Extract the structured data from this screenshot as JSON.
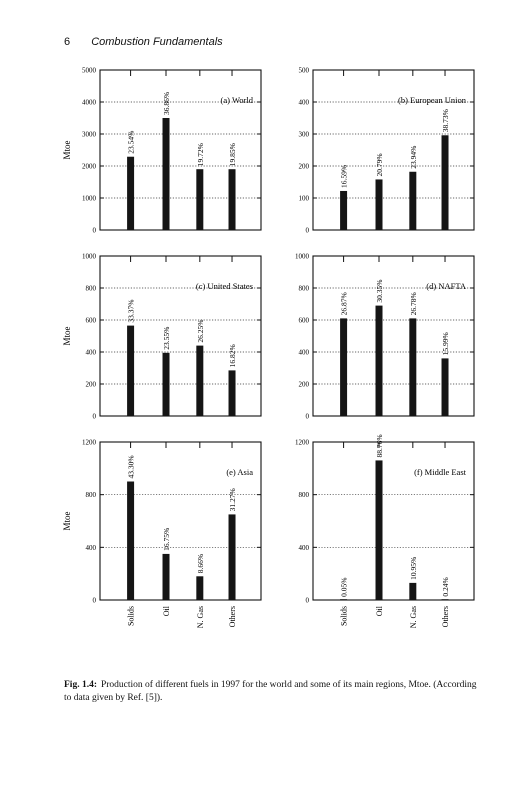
{
  "header": {
    "page_number": "6",
    "running_title": "Combustion Fundamentals"
  },
  "caption": {
    "label": "Fig. 1.4:",
    "text": "Production of different fuels in 1997 for the world and some of its main regions, Mtoe. (According to data given by Ref. [5])."
  },
  "chart_data": [
    {
      "type": "bar",
      "title": "(a) World",
      "ylabel": "Mtoe",
      "ylim": [
        0,
        5000
      ],
      "yticks": [
        0,
        1000,
        2000,
        3000,
        4000,
        5000
      ],
      "categories": [
        "Solids",
        "Oil",
        "N. Gas",
        "Others"
      ],
      "values": [
        2290,
        3500,
        1900,
        1900
      ],
      "labels": [
        "23.54%",
        "36.86%",
        "19.72%",
        "19.85%"
      ],
      "grid": "dotted-horizontal"
    },
    {
      "type": "bar",
      "title": "(b) European Union",
      "ylabel": "",
      "ylim": [
        0,
        500
      ],
      "yticks": [
        0,
        100,
        200,
        300,
        400,
        500
      ],
      "categories": [
        "Solids",
        "Oil",
        "N. Gas",
        "Others"
      ],
      "values": [
        122,
        158,
        182,
        296
      ],
      "labels": [
        "16.59%",
        "20.79%",
        "23.94%",
        "38.73%"
      ],
      "grid": "dotted-horizontal"
    },
    {
      "type": "bar",
      "title": "(c) United States",
      "ylabel": "Mtoe",
      "ylim": [
        0,
        1000
      ],
      "yticks": [
        0,
        200,
        400,
        600,
        800,
        1000
      ],
      "categories": [
        "Solids",
        "Oil",
        "N. Gas",
        "Others"
      ],
      "values": [
        565,
        395,
        440,
        285
      ],
      "labels": [
        "33.37%",
        "23.55%",
        "26.25%",
        "16.82%"
      ],
      "grid": "dotted-horizontal"
    },
    {
      "type": "bar",
      "title": "(d) NAFTA",
      "ylabel": "",
      "ylim": [
        0,
        1000
      ],
      "yticks": [
        0,
        200,
        400,
        600,
        800,
        1000
      ],
      "categories": [
        "Solids",
        "Oil",
        "N. Gas",
        "Others"
      ],
      "values": [
        610,
        690,
        610,
        360
      ],
      "labels": [
        "26.87%",
        "30.35%",
        "26.78%",
        "15.99%"
      ],
      "grid": "dotted-horizontal"
    },
    {
      "type": "bar",
      "title": "(e) Asia",
      "ylabel": "Mtoe",
      "ylim": [
        0,
        1200
      ],
      "yticks": [
        0,
        400,
        800,
        1200
      ],
      "categories": [
        "Solids",
        "Oil",
        "N. Gas",
        "Others"
      ],
      "values": [
        900,
        350,
        180,
        650
      ],
      "labels": [
        "43.30%",
        "16.75%",
        "8.66%",
        "31.27%"
      ],
      "grid": "dotted-horizontal"
    },
    {
      "type": "bar",
      "title": "(f) Middle East",
      "ylabel": "",
      "ylim": [
        0,
        1200
      ],
      "yticks": [
        0,
        400,
        800,
        1200
      ],
      "categories": [
        "Solids",
        "Oil",
        "N. Gas",
        "Others"
      ],
      "values": [
        1,
        1060,
        130,
        3
      ],
      "labels": [
        "0.05%",
        "88.76%",
        "10.95%",
        "0.24%"
      ],
      "grid": "dotted-horizontal"
    }
  ]
}
